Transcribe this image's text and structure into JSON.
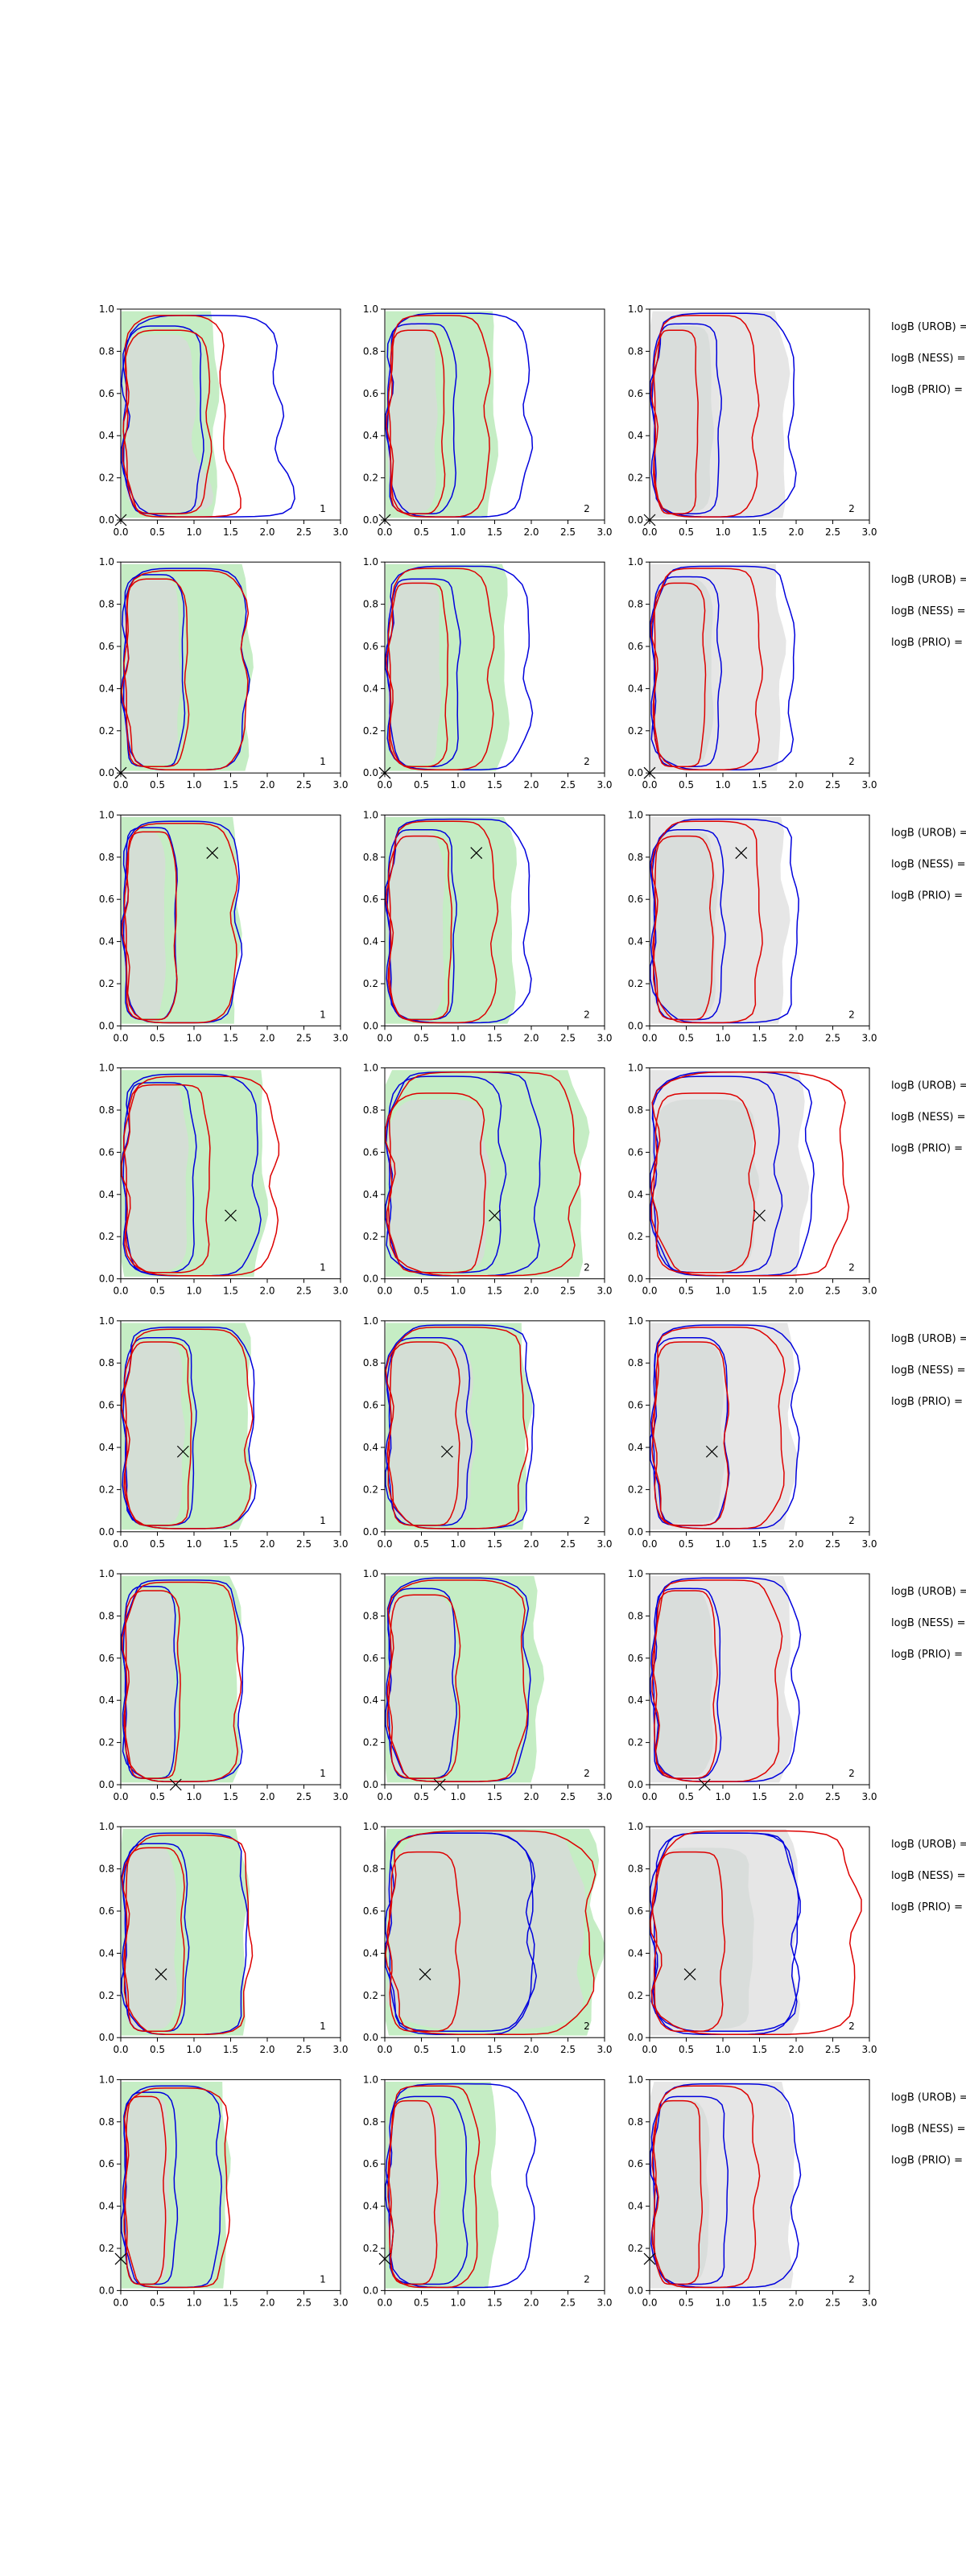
{
  "chart_data": {
    "type": "contour",
    "layout": {
      "rows": 8,
      "columns": 3
    },
    "x_range": [
      0,
      3
    ],
    "y_range": [
      0,
      1
    ],
    "x_ticks": [
      "0.0",
      "0.5",
      "1.0",
      "1.5",
      "2.0",
      "2.5",
      "3.0"
    ],
    "y_ticks": [
      "0.0",
      "0.2",
      "0.4",
      "0.6",
      "0.8",
      "1.0"
    ],
    "panel_number_labels": [
      "1",
      "2",
      "2"
    ],
    "side_annotations": [
      "logB (UROB) =",
      "logB (NESS) =",
      "logB (PRIO) ="
    ],
    "colors": {
      "fill_column_1_2": "#c5edc4",
      "fill_column_3": "#e6e6e6",
      "inner_fill": "#d6dad8",
      "contour_a": "#0000dd",
      "contour_b": "#dd0000"
    },
    "rows": [
      {
        "marker": [
          0.0,
          0.0
        ],
        "cols": [
          {
            "inner": [
              1.0,
              0.88
            ],
            "a": [
              [
                1.1,
                0.92
              ],
              [
                2.15,
                0.97
              ]
            ],
            "b": [
              [
                1.2,
                0.9
              ],
              [
                1.4,
                0.97
              ]
            ],
            "fill": 1.3,
            "skew": true
          },
          {
            "inner": [
              0.7,
              0.94
            ],
            "a": [
              [
                0.95,
                0.93
              ],
              [
                1.95,
                0.98
              ]
            ],
            "b": [
              [
                0.8,
                0.9
              ],
              [
                1.4,
                0.97
              ]
            ],
            "fill": 1.5
          },
          {
            "inner": [
              0.85,
              0.92
            ],
            "a": [
              [
                0.95,
                0.93
              ],
              [
                1.95,
                0.98
              ]
            ],
            "b": [
              [
                0.65,
                0.9
              ],
              [
                1.45,
                0.97
              ]
            ],
            "fill": 1.85
          }
        ]
      },
      {
        "marker": [
          0.0,
          0.0
        ],
        "cols": [
          {
            "inner": [
              0.8,
              0.92
            ],
            "a": [
              [
                0.85,
                0.94
              ],
              [
                1.7,
                0.97
              ]
            ],
            "b": [
              [
                0.9,
                0.92
              ],
              [
                1.7,
                0.96
              ]
            ],
            "fill": 1.75
          },
          {
            "inner": [
              0.75,
              0.92
            ],
            "a": [
              [
                1.0,
                0.92
              ],
              [
                1.95,
                0.98
              ]
            ],
            "b": [
              [
                0.85,
                0.9
              ],
              [
                1.45,
                0.97
              ]
            ],
            "fill": 1.65
          },
          {
            "inner": [
              0.85,
              0.92
            ],
            "a": [
              [
                0.95,
                0.93
              ],
              [
                1.95,
                0.98
              ]
            ],
            "b": [
              [
                0.75,
                0.9
              ],
              [
                1.5,
                0.97
              ]
            ],
            "fill": 1.8
          }
        ]
      },
      {
        "marker": [
          1.25,
          0.82
        ],
        "cols": [
          {
            "inner": [
              0.6,
              0.92
            ],
            "a": [
              [
                0.75,
                0.94
              ],
              [
                1.6,
                0.97
              ]
            ],
            "b": [
              [
                0.75,
                0.92
              ],
              [
                1.55,
                0.96
              ]
            ],
            "fill": 1.6
          },
          {
            "inner": [
              0.8,
              0.92
            ],
            "a": [
              [
                0.95,
                0.93
              ],
              [
                1.95,
                0.98
              ]
            ],
            "b": [
              [
                0.9,
                0.9
              ],
              [
                1.5,
                0.97
              ]
            ],
            "fill": 1.75
          },
          {
            "inner": [
              0.9,
              0.92
            ],
            "a": [
              [
                1.0,
                0.93
              ],
              [
                2.0,
                0.98
              ]
            ],
            "b": [
              [
                0.85,
                0.9
              ],
              [
                1.5,
                0.97
              ]
            ],
            "fill": 1.85
          }
        ]
      },
      {
        "marker": [
          1.5,
          0.3
        ],
        "cols": [
          {
            "inner": [
              0.9,
              0.92
            ],
            "a": [
              [
                1.0,
                0.93
              ],
              [
                1.85,
                0.97
              ]
            ],
            "b": [
              [
                1.2,
                0.92
              ],
              [
                2.1,
                0.96
              ]
            ],
            "fill": 1.95
          },
          {
            "inner": [
              1.4,
              0.85
            ],
            "a": [
              [
                1.6,
                0.96
              ],
              [
                2.1,
                0.98
              ]
            ],
            "b": [
              [
                1.35,
                0.88
              ],
              [
                2.6,
                0.98
              ]
            ],
            "fill": 2.7
          },
          {
            "inner": [
              1.45,
              0.85
            ],
            "a": [
              [
                1.75,
                0.96
              ],
              [
                2.2,
                0.98
              ]
            ],
            "b": [
              [
                1.4,
                0.88
              ],
              [
                2.65,
                0.98
              ]
            ],
            "fill": 2.1
          }
        ]
      },
      {
        "marker": [
          0.85,
          0.38
        ],
        "cols": [
          {
            "inner": [
              0.85,
              0.9
            ],
            "a": [
              [
                1.0,
                0.92
              ],
              [
                1.8,
                0.97
              ]
            ],
            "b": [
              [
                0.95,
                0.9
              ],
              [
                1.75,
                0.96
              ]
            ],
            "fill": 1.75
          },
          {
            "inner": [
              1.2,
              0.9
            ],
            "a": [
              [
                1.15,
                0.92
              ],
              [
                2.0,
                0.98
              ]
            ],
            "b": [
              [
                1.0,
                0.9
              ],
              [
                1.9,
                0.97
              ]
            ],
            "fill": 1.95
          },
          {
            "inner": [
              1.0,
              0.9
            ],
            "a": [
              [
                1.05,
                0.92
              ],
              [
                2.0,
                0.98
              ]
            ],
            "b": [
              [
                1.05,
                0.9
              ],
              [
                1.8,
                0.97
              ]
            ],
            "fill": 1.95
          }
        ]
      },
      {
        "marker": [
          0.75,
          0.0
        ],
        "cols": [
          {
            "inner": [
              0.75,
              0.92
            ],
            "a": [
              [
                0.75,
                0.94
              ],
              [
                1.65,
                0.97
              ]
            ],
            "b": [
              [
                0.8,
                0.92
              ],
              [
                1.6,
                0.96
              ]
            ],
            "fill": 1.6
          },
          {
            "inner": [
              0.95,
              0.9
            ],
            "a": [
              [
                0.95,
                0.93
              ],
              [
                1.95,
                0.98
              ]
            ],
            "b": [
              [
                1.0,
                0.9
              ],
              [
                1.9,
                0.97
              ]
            ],
            "fill": 2.1
          },
          {
            "inner": [
              0.85,
              0.92
            ],
            "a": [
              [
                0.95,
                0.93
              ],
              [
                2.0,
                0.98
              ]
            ],
            "b": [
              [
                0.9,
                0.92
              ],
              [
                1.75,
                0.97
              ]
            ],
            "fill": 1.9
          }
        ]
      },
      {
        "marker": [
          0.55,
          0.3
        ],
        "cols": [
          {
            "inner": [
              0.75,
              0.9
            ],
            "a": [
              [
                0.9,
                0.92
              ],
              [
                1.7,
                0.97
              ]
            ],
            "b": [
              [
                0.85,
                0.9
              ],
              [
                1.75,
                0.96
              ]
            ],
            "fill": 1.7
          },
          {
            "inner": [
              2.7,
              0.98
            ],
            "a": [
              [
                2.0,
                0.97
              ],
              [
                2.0,
                0.97
              ]
            ],
            "b": [
              [
                1.0,
                0.88
              ],
              [
                2.8,
                0.98
              ]
            ],
            "fill": 2.9
          },
          {
            "inner": [
              1.4,
              0.9
            ],
            "a": [
              [
                2.0,
                0.97
              ],
              [
                2.0,
                0.97
              ]
            ],
            "b": [
              [
                1.0,
                0.88
              ],
              [
                2.8,
                0.98
              ]
            ],
            "fill": 2.0
          }
        ]
      },
      {
        "marker": [
          0.0,
          0.15
        ],
        "cols": [
          {
            "inner": [
              0.65,
              0.92
            ],
            "a": [
              [
                0.75,
                0.94
              ],
              [
                1.35,
                0.97
              ]
            ],
            "b": [
              [
                0.6,
                0.92
              ],
              [
                1.45,
                0.96
              ]
            ],
            "fill": 1.45
          },
          {
            "inner": [
              0.75,
              0.9
            ],
            "a": [
              [
                1.1,
                0.92
              ],
              [
                2.0,
                0.98
              ]
            ],
            "b": [
              [
                0.7,
                0.9
              ],
              [
                1.25,
                0.97
              ]
            ],
            "fill": 1.5
          },
          {
            "inner": [
              0.8,
              0.9
            ],
            "a": [
              [
                1.05,
                0.92
              ],
              [
                2.0,
                0.98
              ]
            ],
            "b": [
              [
                0.7,
                0.9
              ],
              [
                1.45,
                0.97
              ]
            ],
            "fill": 1.95
          }
        ]
      }
    ]
  }
}
